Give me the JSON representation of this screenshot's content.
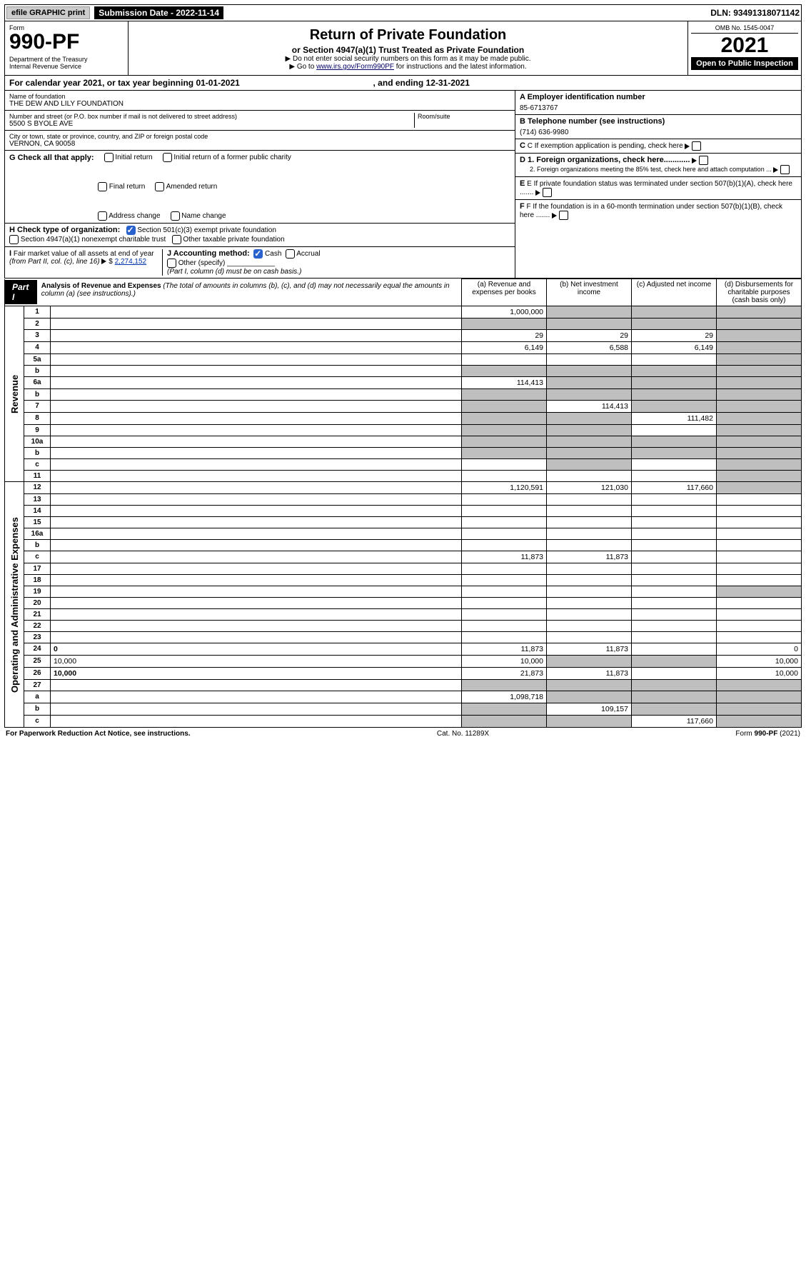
{
  "topbar": {
    "efile": "efile GRAPHIC print",
    "sub_date_label": "Submission Date - 2022-11-14",
    "dln": "DLN: 93491318071142"
  },
  "header": {
    "form_label": "Form",
    "form_num": "990-PF",
    "dept": "Department of the Treasury\nInternal Revenue Service",
    "title": "Return of Private Foundation",
    "subtitle": "or Section 4947(a)(1) Trust Treated as Private Foundation",
    "line1": "▶ Do not enter social security numbers on this form as it may be made public.",
    "line2_pre": "▶ Go to ",
    "line2_link": "www.irs.gov/Form990PF",
    "line2_post": " for instructions and the latest information.",
    "omb": "OMB No. 1545-0047",
    "year": "2021",
    "open": "Open to Public Inspection"
  },
  "calyear": {
    "text_pre": "For calendar year 2021, or tax year beginning 01-01-2021",
    "text_mid": ", and ending 12-31-2021"
  },
  "entity": {
    "name_lbl": "Name of foundation",
    "name": "THE DEW AND LILY FOUNDATION",
    "addr_lbl": "Number and street (or P.O. box number if mail is not delivered to street address)",
    "room_lbl": "Room/suite",
    "addr": "5500 S BYOLE AVE",
    "city_lbl": "City or town, state or province, country, and ZIP or foreign postal code",
    "city": "VERNON, CA  90058",
    "A_lbl": "A Employer identification number",
    "A_val": "85-6713767",
    "B_lbl": "B Telephone number (see instructions)",
    "B_val": "(714) 636-9980",
    "C_lbl": "C If exemption application is pending, check here",
    "G_lbl": "G Check all that apply:",
    "G_opts": [
      "Initial return",
      "Initial return of a former public charity",
      "Final return",
      "Amended return",
      "Address change",
      "Name change"
    ],
    "D1": "D 1. Foreign organizations, check here............",
    "D2": "2. Foreign organizations meeting the 85% test, check here and attach computation ...",
    "H_lbl": "H Check type of organization:",
    "H_opt1": "Section 501(c)(3) exempt private foundation",
    "H_opt2": "Section 4947(a)(1) nonexempt charitable trust",
    "H_opt3": "Other taxable private foundation",
    "E_lbl": "E If private foundation status was terminated under section 507(b)(1)(A), check here .......",
    "I_lbl": "I Fair market value of all assets at end of year (from Part II, col. (c), line 16) ▶ $",
    "I_val": "2,274,152",
    "J_lbl": "J Accounting method:",
    "J_cash": "Cash",
    "J_acc": "Accrual",
    "J_other": "Other (specify)",
    "J_note": "(Part I, column (d) must be on cash basis.)",
    "F_lbl": "F If the foundation is in a 60-month termination under section 507(b)(1)(B), check here ......."
  },
  "part1": {
    "label": "Part I",
    "title": "Analysis of Revenue and Expenses",
    "title_note": "(The total of amounts in columns (b), (c), and (d) may not necessarily equal the amounts in column (a) (see instructions).)",
    "cols": {
      "a": "(a) Revenue and expenses per books",
      "b": "(b) Net investment income",
      "c": "(c) Adjusted net income",
      "d": "(d) Disbursements for charitable purposes (cash basis only)"
    }
  },
  "sidelabels": {
    "rev": "Revenue",
    "exp": "Operating and Administrative Expenses"
  },
  "rows": [
    {
      "n": "1",
      "d": "",
      "a": "1,000,000",
      "b": "",
      "c": "",
      "cg": [
        "",
        "g",
        "g",
        "g"
      ]
    },
    {
      "n": "2",
      "d": "",
      "a": "",
      "b": "",
      "c": "",
      "cg": [
        "g",
        "g",
        "g",
        "g"
      ]
    },
    {
      "n": "3",
      "d": "",
      "a": "29",
      "b": "29",
      "c": "29",
      "cg": [
        "",
        "",
        "",
        "g"
      ]
    },
    {
      "n": "4",
      "d": "",
      "a": "6,149",
      "b": "6,588",
      "c": "6,149",
      "cg": [
        "",
        "",
        "",
        "g"
      ]
    },
    {
      "n": "5a",
      "d": "",
      "a": "",
      "b": "",
      "c": "",
      "cg": [
        "",
        "",
        "",
        "g"
      ]
    },
    {
      "n": "b",
      "d": "",
      "a": "",
      "b": "",
      "c": "",
      "cg": [
        "g",
        "g",
        "g",
        "g"
      ]
    },
    {
      "n": "6a",
      "d": "",
      "a": "114,413",
      "b": "",
      "c": "",
      "cg": [
        "",
        "g",
        "g",
        "g"
      ]
    },
    {
      "n": "b",
      "d": "",
      "a": "",
      "b": "",
      "c": "",
      "cg": [
        "g",
        "g",
        "g",
        "g"
      ]
    },
    {
      "n": "7",
      "d": "",
      "a": "",
      "b": "114,413",
      "c": "",
      "cg": [
        "g",
        "",
        "g",
        "g"
      ]
    },
    {
      "n": "8",
      "d": "",
      "a": "",
      "b": "",
      "c": "111,482",
      "cg": [
        "g",
        "g",
        "",
        "g"
      ]
    },
    {
      "n": "9",
      "d": "",
      "a": "",
      "b": "",
      "c": "",
      "cg": [
        "g",
        "g",
        "",
        "g"
      ]
    },
    {
      "n": "10a",
      "d": "",
      "a": "",
      "b": "",
      "c": "",
      "cg": [
        "g",
        "g",
        "g",
        "g"
      ]
    },
    {
      "n": "b",
      "d": "",
      "a": "",
      "b": "",
      "c": "",
      "cg": [
        "g",
        "g",
        "g",
        "g"
      ]
    },
    {
      "n": "c",
      "d": "",
      "a": "",
      "b": "",
      "c": "",
      "cg": [
        "",
        "g",
        "",
        "g"
      ]
    },
    {
      "n": "11",
      "d": "",
      "a": "",
      "b": "",
      "c": "",
      "cg": [
        "",
        "",
        "",
        "g"
      ]
    },
    {
      "n": "12",
      "d": "",
      "a": "1,120,591",
      "b": "121,030",
      "c": "117,660",
      "cg": [
        "",
        "",
        "",
        "g"
      ],
      "bold": true
    },
    {
      "n": "13",
      "d": "",
      "a": "",
      "b": "",
      "c": "",
      "cg": [
        "",
        "",
        "",
        ""
      ]
    },
    {
      "n": "14",
      "d": "",
      "a": "",
      "b": "",
      "c": "",
      "cg": [
        "",
        "",
        "",
        ""
      ]
    },
    {
      "n": "15",
      "d": "",
      "a": "",
      "b": "",
      "c": "",
      "cg": [
        "",
        "",
        "",
        ""
      ]
    },
    {
      "n": "16a",
      "d": "",
      "a": "",
      "b": "",
      "c": "",
      "cg": [
        "",
        "",
        "",
        ""
      ]
    },
    {
      "n": "b",
      "d": "",
      "a": "",
      "b": "",
      "c": "",
      "cg": [
        "",
        "",
        "",
        ""
      ]
    },
    {
      "n": "c",
      "d": "",
      "a": "11,873",
      "b": "11,873",
      "c": "",
      "cg": [
        "",
        "",
        "",
        ""
      ]
    },
    {
      "n": "17",
      "d": "",
      "a": "",
      "b": "",
      "c": "",
      "cg": [
        "",
        "",
        "",
        ""
      ]
    },
    {
      "n": "18",
      "d": "",
      "a": "",
      "b": "",
      "c": "",
      "cg": [
        "",
        "",
        "",
        ""
      ]
    },
    {
      "n": "19",
      "d": "",
      "a": "",
      "b": "",
      "c": "",
      "cg": [
        "",
        "",
        "",
        "g"
      ]
    },
    {
      "n": "20",
      "d": "",
      "a": "",
      "b": "",
      "c": "",
      "cg": [
        "",
        "",
        "",
        ""
      ]
    },
    {
      "n": "21",
      "d": "",
      "a": "",
      "b": "",
      "c": "",
      "cg": [
        "",
        "",
        "",
        ""
      ]
    },
    {
      "n": "22",
      "d": "",
      "a": "",
      "b": "",
      "c": "",
      "cg": [
        "",
        "",
        "",
        ""
      ]
    },
    {
      "n": "23",
      "d": "",
      "a": "",
      "b": "",
      "c": "",
      "cg": [
        "",
        "",
        "",
        ""
      ]
    },
    {
      "n": "24",
      "d": "0",
      "a": "11,873",
      "b": "11,873",
      "c": "",
      "cg": [
        "",
        "",
        "",
        ""
      ],
      "bold": true
    },
    {
      "n": "25",
      "d": "10,000",
      "a": "10,000",
      "b": "",
      "c": "",
      "cg": [
        "",
        "g",
        "g",
        ""
      ]
    },
    {
      "n": "26",
      "d": "10,000",
      "a": "21,873",
      "b": "11,873",
      "c": "",
      "cg": [
        "",
        "",
        "",
        ""
      ],
      "bold": true
    },
    {
      "n": "27",
      "d": "",
      "a": "",
      "b": "",
      "c": "",
      "cg": [
        "g",
        "g",
        "g",
        "g"
      ]
    },
    {
      "n": "a",
      "d": "",
      "a": "1,098,718",
      "b": "",
      "c": "",
      "cg": [
        "",
        "g",
        "g",
        "g"
      ],
      "bold": true
    },
    {
      "n": "b",
      "d": "",
      "a": "",
      "b": "109,157",
      "c": "",
      "cg": [
        "g",
        "",
        "g",
        "g"
      ],
      "bold": true
    },
    {
      "n": "c",
      "d": "",
      "a": "",
      "b": "",
      "c": "117,660",
      "cg": [
        "g",
        "g",
        "",
        "g"
      ],
      "bold": true
    }
  ],
  "footer": {
    "left": "For Paperwork Reduction Act Notice, see instructions.",
    "mid": "Cat. No. 11289X",
    "right": "Form 990-PF (2021)"
  }
}
